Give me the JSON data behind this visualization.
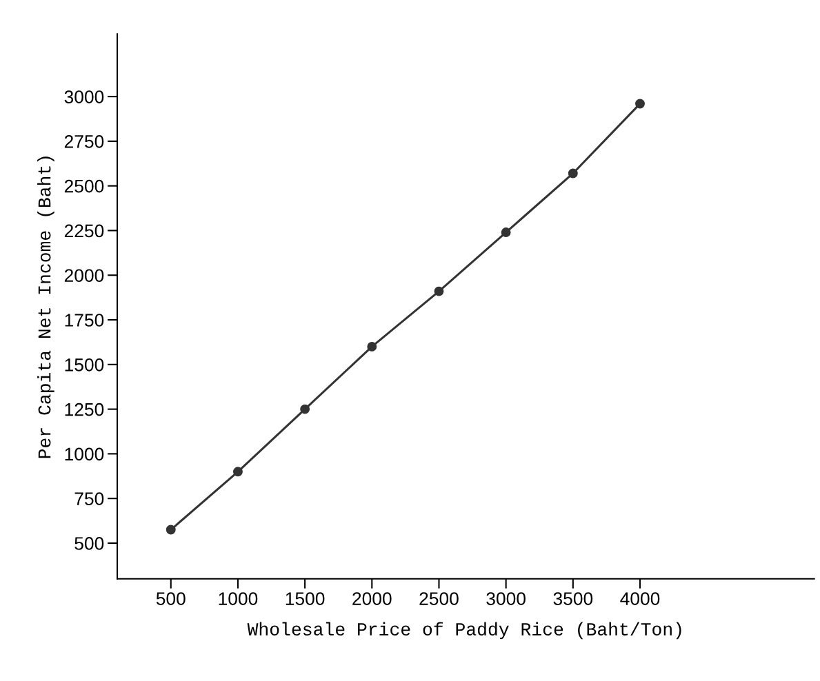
{
  "chart_data": {
    "type": "line",
    "xlabel": "Wholesale Price of Paddy Rice (Baht/Ton)",
    "ylabel": "Per Capita Net Income (Baht)",
    "x": [
      500,
      1000,
      1500,
      2000,
      2500,
      3000,
      3500,
      4000
    ],
    "series": [
      {
        "color": "#333333",
        "values": [
          575,
          900,
          1250,
          1600,
          1910,
          2240,
          2570,
          2960
        ]
      }
    ],
    "xlim": [
      100,
      5300
    ],
    "xticks": [
      500,
      1000,
      1500,
      2000,
      2500,
      3000,
      3500,
      4000
    ],
    "ylim": [
      300,
      3350
    ],
    "yticks": [
      500,
      750,
      1000,
      1250,
      1500,
      1750,
      2000,
      2250,
      2500,
      2750,
      3000
    ],
    "marker": "circle",
    "line_style": "solid",
    "grid": false,
    "legend": false
  }
}
